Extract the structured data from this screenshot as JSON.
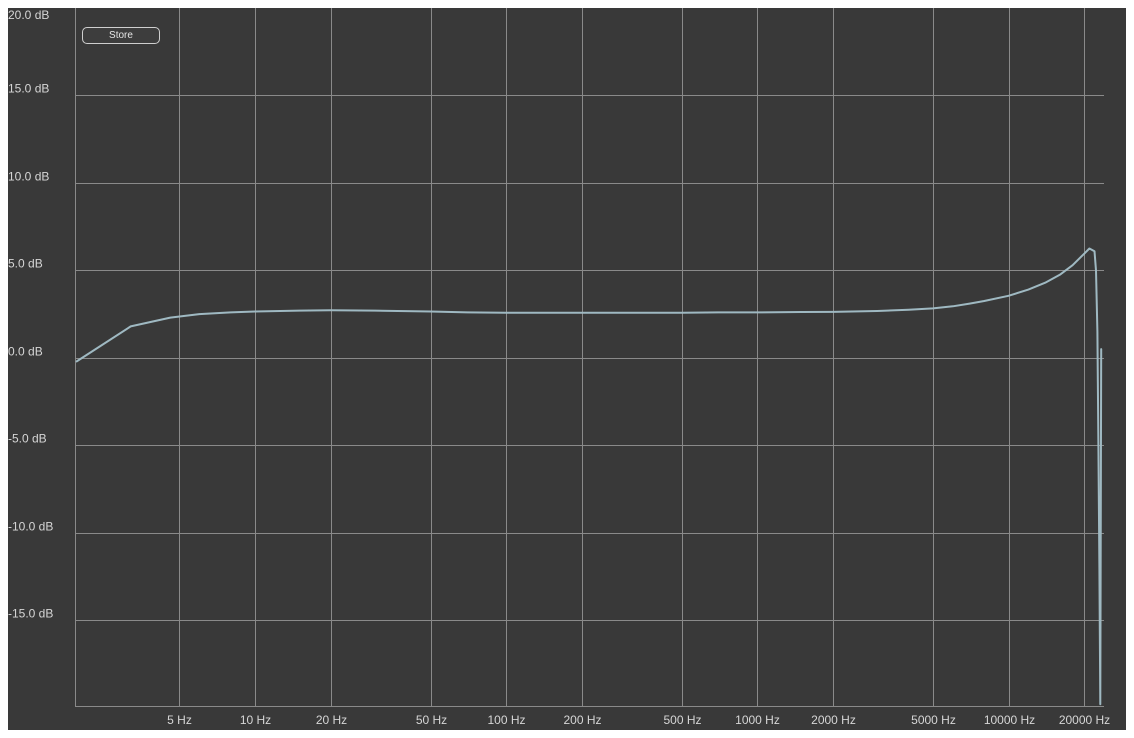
{
  "store_button": {
    "label": "Store"
  },
  "chart_data": {
    "type": "line",
    "title": "",
    "xlabel": "",
    "ylabel": "",
    "x_scale": "log",
    "grid": true,
    "xlim": [
      1.92,
      24000
    ],
    "ylim": [
      -19.9,
      20.0
    ],
    "y_ticks": [
      {
        "value": 20,
        "label": "20.0 dB"
      },
      {
        "value": 15,
        "label": "15.0 dB"
      },
      {
        "value": 10,
        "label": "10.0 dB"
      },
      {
        "value": 5,
        "label": "5.0 dB"
      },
      {
        "value": 0,
        "label": "0.0 dB"
      },
      {
        "value": -5,
        "label": "-5.0 dB"
      },
      {
        "value": -10,
        "label": "-10.0 dB"
      },
      {
        "value": -15,
        "label": "-15.0 dB"
      }
    ],
    "x_ticks": [
      {
        "value": 5,
        "label": "5 Hz"
      },
      {
        "value": 10,
        "label": "10 Hz"
      },
      {
        "value": 20,
        "label": "20 Hz"
      },
      {
        "value": 50,
        "label": "50 Hz"
      },
      {
        "value": 100,
        "label": "100 Hz"
      },
      {
        "value": 200,
        "label": "200 Hz"
      },
      {
        "value": 500,
        "label": "500 Hz"
      },
      {
        "value": 1000,
        "label": "1000 Hz"
      },
      {
        "value": 2000,
        "label": "2000 Hz"
      },
      {
        "value": 5000,
        "label": "5000 Hz"
      },
      {
        "value": 10000,
        "label": "10000 Hz"
      },
      {
        "value": 20000,
        "label": "20000 Hz"
      }
    ],
    "colors": {
      "background": "#393939",
      "grid": "#8a8a8a",
      "line": "#9fb9c2",
      "text": "#d6d6d6"
    },
    "series": [
      {
        "x": [
          1.95,
          3.2,
          4.6,
          6,
          8,
          10,
          15,
          20,
          30,
          50,
          70,
          100,
          150,
          200,
          300,
          500,
          700,
          1000,
          1500,
          2000,
          3000,
          4000,
          5000,
          6000,
          7000,
          8000,
          10000,
          12000,
          14000,
          16000,
          18000,
          20000,
          21000,
          22000,
          22300,
          22600,
          22800,
          23000,
          23200,
          23400
        ],
        "y": [
          -0.2,
          1.8,
          2.3,
          2.5,
          2.6,
          2.65,
          2.7,
          2.72,
          2.7,
          2.65,
          2.6,
          2.58,
          2.58,
          2.58,
          2.58,
          2.58,
          2.6,
          2.6,
          2.62,
          2.63,
          2.68,
          2.75,
          2.83,
          2.95,
          3.1,
          3.25,
          3.55,
          3.9,
          4.3,
          4.75,
          5.3,
          5.95,
          6.25,
          6.1,
          5.0,
          1.5,
          -5.0,
          -12.0,
          -19.8,
          0.5
        ]
      }
    ]
  }
}
